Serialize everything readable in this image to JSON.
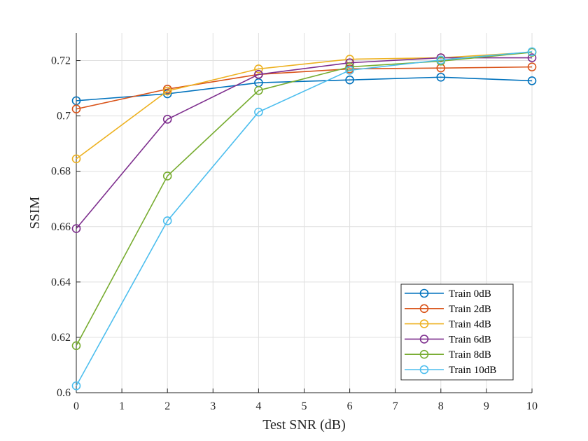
{
  "chart_data": {
    "type": "line",
    "title": "",
    "xlabel": "Test SNR (dB)",
    "ylabel": "SSIM",
    "xlim": [
      0,
      10
    ],
    "ylim": [
      0.6,
      0.73
    ],
    "x_ticks": [
      0,
      1,
      2,
      3,
      4,
      5,
      6,
      7,
      8,
      9,
      10
    ],
    "x_tick_labels": [
      "0",
      "1",
      "2",
      "3",
      "4",
      "5",
      "6",
      "7",
      "8",
      "9",
      "10"
    ],
    "y_ticks": [
      0.6,
      0.62,
      0.64,
      0.66,
      0.68,
      0.7,
      0.72
    ],
    "y_tick_labels": [
      "0.6",
      "0.62",
      "0.64",
      "0.66",
      "0.68",
      "0.7",
      "0.72"
    ],
    "grid": true,
    "legend_position": "bottom-right",
    "x": [
      0,
      2,
      4,
      6,
      8,
      10
    ],
    "series": [
      {
        "name": "Train 0dB",
        "color": "#0072BD",
        "values": [
          0.7055,
          0.708,
          0.712,
          0.713,
          0.714,
          0.7127
        ]
      },
      {
        "name": "Train 2dB",
        "color": "#D95319",
        "values": [
          0.7025,
          0.7097,
          0.715,
          0.717,
          0.7173,
          0.7177
        ]
      },
      {
        "name": "Train 4dB",
        "color": "#EDB120",
        "values": [
          0.6845,
          0.709,
          0.717,
          0.7205,
          0.721,
          0.723
        ]
      },
      {
        "name": "Train 6dB",
        "color": "#7E2F8E",
        "values": [
          0.6593,
          0.6988,
          0.715,
          0.7192,
          0.721,
          0.721
        ]
      },
      {
        "name": "Train 8dB",
        "color": "#77AC30",
        "values": [
          0.617,
          0.6783,
          0.7092,
          0.7177,
          0.7198,
          0.723
        ]
      },
      {
        "name": "Train 10dB",
        "color": "#4DBEEE",
        "values": [
          0.6025,
          0.6621,
          0.7014,
          0.7165,
          0.7202,
          0.7232
        ]
      }
    ]
  }
}
